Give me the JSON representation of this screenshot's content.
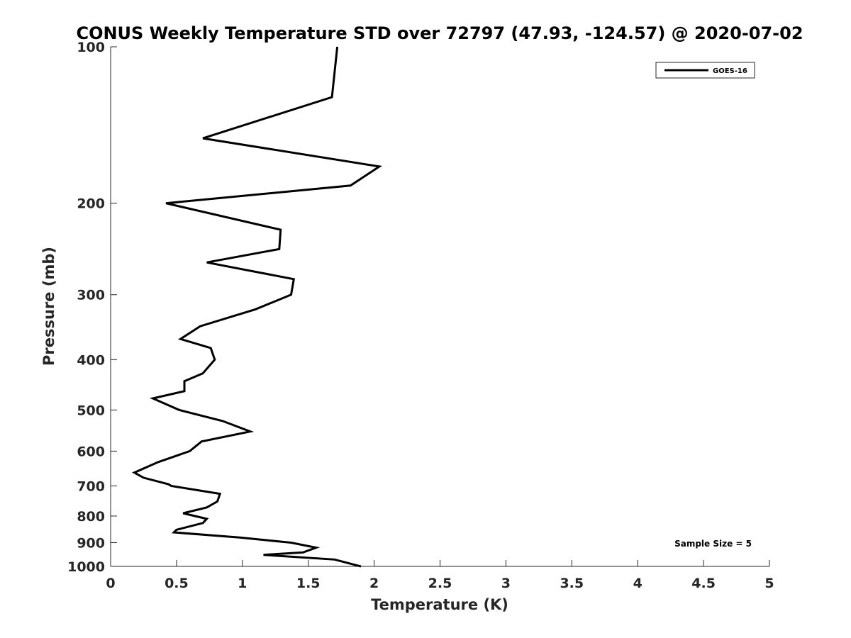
{
  "chart_data": {
    "type": "line",
    "title": "CONUS Weekly Temperature STD over 72797 (47.93, -124.57) @ 2020-07-02",
    "xlabel": "Temperature (K)",
    "ylabel": "Pressure (mb)",
    "xlim": [
      0,
      5
    ],
    "ylim": [
      100,
      1000
    ],
    "y_scale": "log",
    "y_reversed": true,
    "grid": false,
    "legend_position": "top-right",
    "x_ticks": [
      "0",
      "0.5",
      "1",
      "1.5",
      "2",
      "2.5",
      "3",
      "3.5",
      "4",
      "4.5",
      "5"
    ],
    "y_ticks": [
      "100",
      "200",
      "300",
      "400",
      "500",
      "600",
      "700",
      "800",
      "900",
      "1000"
    ],
    "series": [
      {
        "name": "GOES-16",
        "color": "#000000",
        "x": [
          1.72,
          1.68,
          0.7,
          2.04,
          1.82,
          0.42,
          1.29,
          1.28,
          0.73,
          1.39,
          1.37,
          1.1,
          0.68,
          0.53,
          0.76,
          0.79,
          0.7,
          0.56,
          0.56,
          0.32,
          0.52,
          0.85,
          1.06,
          0.69,
          0.6,
          0.36,
          0.18,
          0.25,
          0.44,
          0.46,
          0.83,
          0.81,
          0.73,
          0.55,
          0.73,
          0.7,
          0.5,
          0.48,
          0.98,
          1.37,
          1.56,
          1.46,
          1.16,
          1.7,
          1.9
        ],
        "y": [
          100,
          125,
          150,
          170,
          185,
          200,
          225,
          245,
          260,
          280,
          300,
          320,
          345,
          365,
          380,
          400,
          425,
          440,
          460,
          475,
          500,
          525,
          550,
          575,
          600,
          630,
          660,
          675,
          695,
          700,
          725,
          750,
          770,
          790,
          810,
          825,
          850,
          860,
          880,
          900,
          920,
          940,
          950,
          970,
          1000
        ]
      }
    ]
  },
  "annotations": {
    "sample_size": "Sample Size = 5"
  }
}
